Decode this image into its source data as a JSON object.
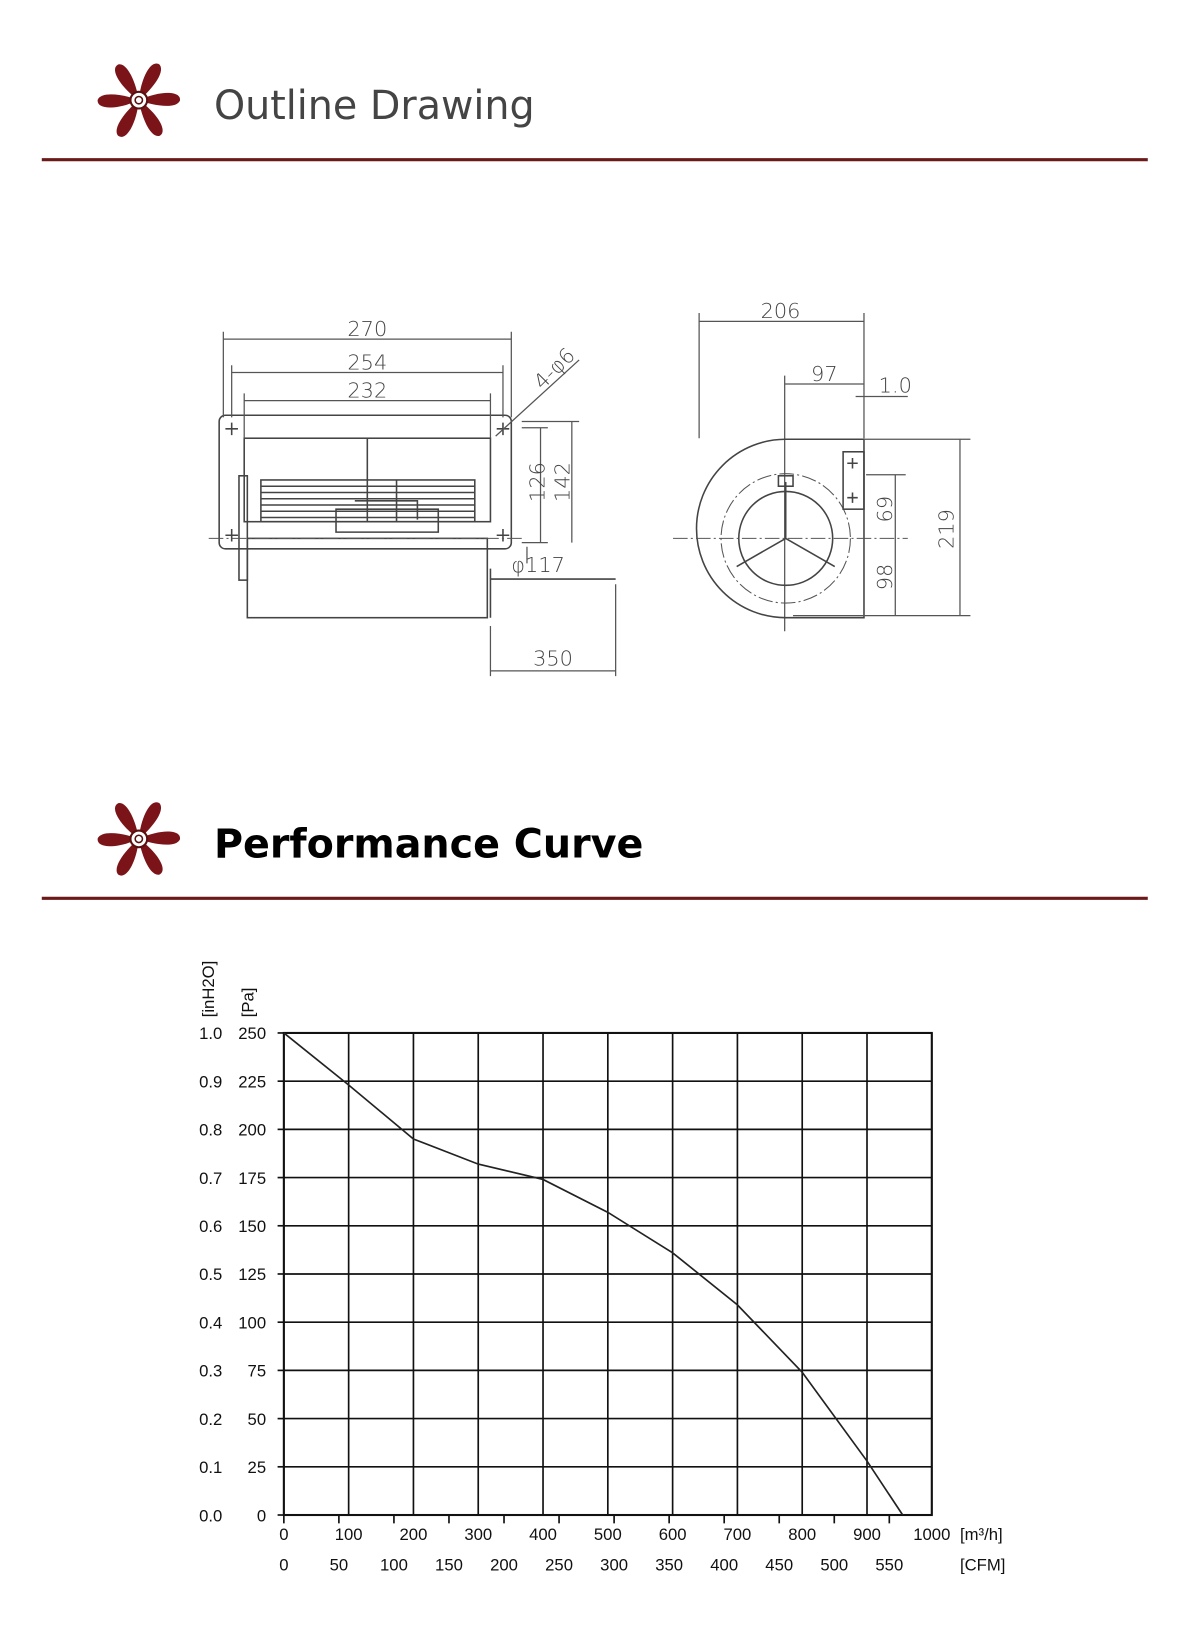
{
  "sections": [
    {
      "title": "Outline Drawing"
    },
    {
      "title": "Performance Curve"
    }
  ],
  "drawing": {
    "dimensions": [
      "270",
      "254",
      "232",
      "4-φ6",
      "126",
      "142",
      "φ117",
      "350",
      "206",
      "97",
      "1.0",
      "69",
      "219",
      "98"
    ]
  },
  "chart_data": {
    "type": "line",
    "color": "#222",
    "x": [
      0,
      100,
      200,
      300,
      400,
      500,
      600,
      700,
      800,
      900,
      955
    ],
    "values": [
      250,
      223,
      195,
      182,
      174,
      157,
      136,
      109,
      74,
      28,
      0
    ],
    "xlim": [
      0,
      1000
    ],
    "xticks": [
      0,
      100,
      200,
      300,
      400,
      500,
      600,
      700,
      800,
      900,
      1000
    ],
    "x2lim": [
      0,
      588.6
    ],
    "x2ticks": [
      0,
      50,
      100,
      150,
      200,
      250,
      300,
      350,
      400,
      450,
      500,
      550
    ],
    "ylim": [
      0,
      250
    ],
    "yticks": [
      0,
      25,
      50,
      75,
      100,
      125,
      150,
      175,
      200,
      225,
      250
    ],
    "y2lim": [
      0,
      1
    ],
    "y2ticks": [
      {
        "value": 0,
        "label": "0.0"
      },
      0.1,
      0.2,
      0.3,
      0.4,
      0.5,
      0.6,
      0.7,
      0.8,
      0.9,
      {
        "value": 1,
        "label": "1.0"
      }
    ],
    "xlabel": "[m³/h]",
    "x2label": "[CFM]",
    "ylabel": "[Pa]",
    "y2label": "[inH2O]",
    "grid": true
  }
}
